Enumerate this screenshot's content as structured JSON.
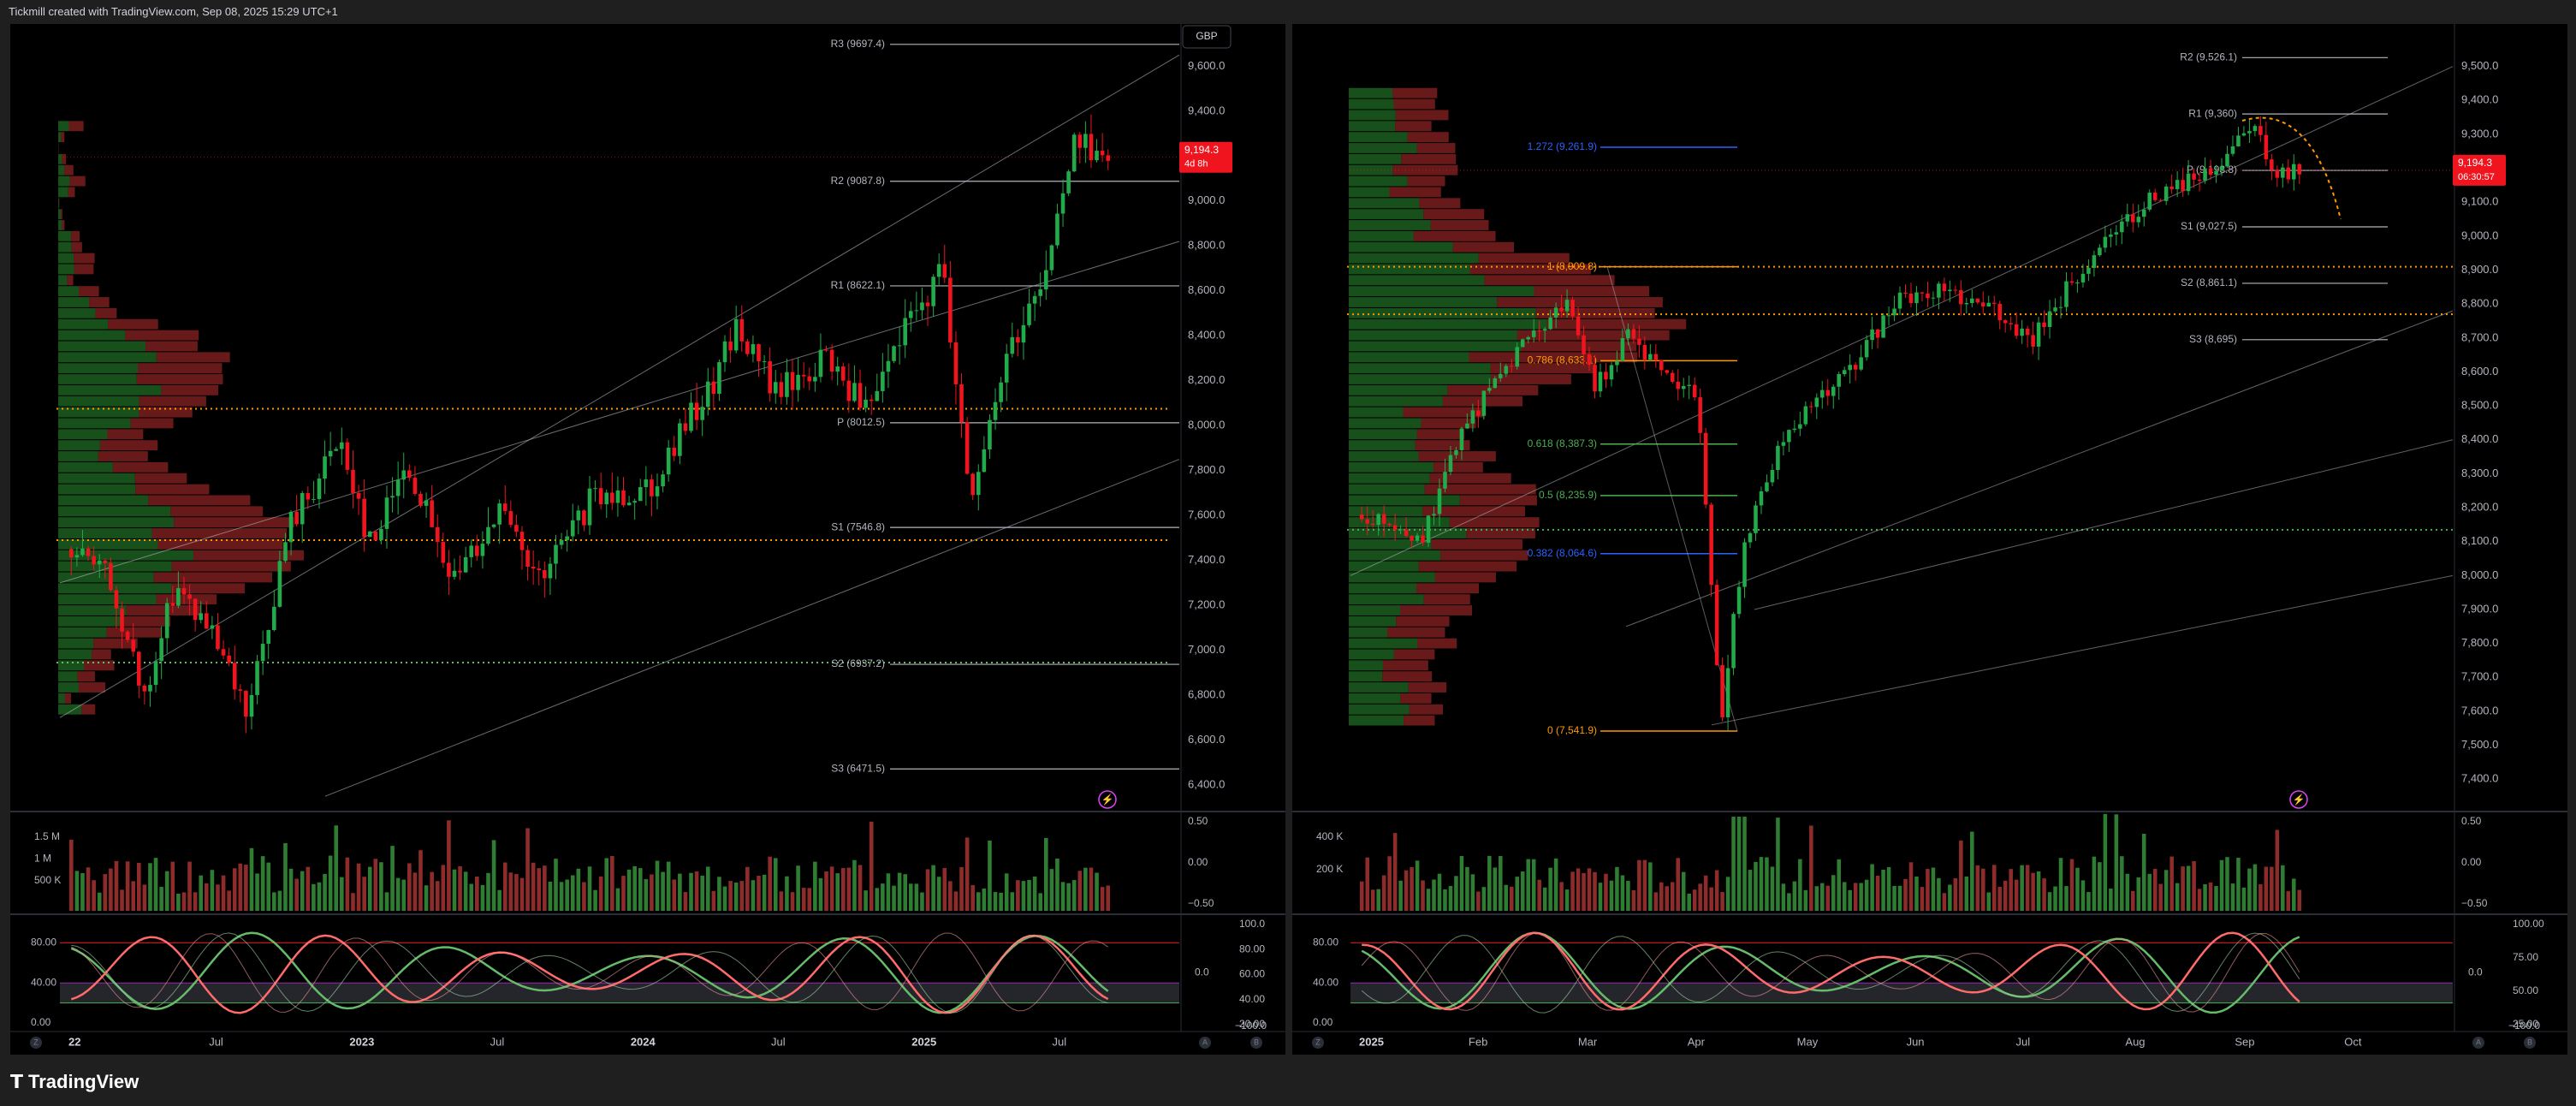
{
  "header": {
    "title": "Tickmill created with TradingView.com, Sep 08, 2025 15:29 UTC+1"
  },
  "footer": {
    "brand": "TradingView"
  },
  "colors": {
    "background": "#000000",
    "frame": "#1f1f1f",
    "up": "#22ab4a",
    "down": "#f0141e",
    "pivot_line": "#b2b5be",
    "fib_orange": "#ff9800",
    "fib_blue": "#2962ff",
    "fib_green": "#4caf50",
    "price_badge": "#f0141e",
    "stoch_fast": "#66bb6a",
    "stoch_slow": "#ff6b6b"
  },
  "icons": {
    "bolt": "lightning-bolt-icon",
    "brand": "tradingview-logo-icon"
  },
  "chart_data": [
    {
      "type": "candlestick",
      "panel": "left",
      "currency_label": "GBP",
      "price_axis": {
        "ylim": [
          6320,
          9750
        ],
        "ticks": [
          "9,600.0",
          "9,400.0",
          "9,200.0",
          "9,000.0",
          "8,800.0",
          "8,600.0",
          "8,400.0",
          "8,200.0",
          "8,000.0",
          "7,800.0",
          "7,600.0",
          "7,400.0",
          "7,200.0",
          "7,000.0",
          "6,800.0",
          "6,600.0",
          "6,400.0"
        ]
      },
      "time_axis": {
        "labels": [
          "22",
          "Jul",
          "2023",
          "Jul",
          "2024",
          "Jul",
          "2025",
          "Jul"
        ]
      },
      "last_price": {
        "value": "9,194.3",
        "countdown": "4d 8h"
      },
      "pivots": [
        {
          "label": "R3 (9697.4)",
          "value": 9697.4
        },
        {
          "label": "R2 (9087.8)",
          "value": 9087.8
        },
        {
          "label": "R1 (8622.1)",
          "value": 8622.1
        },
        {
          "label": "P (8012.5)",
          "value": 8012.5
        },
        {
          "label": "S1 (7546.8)",
          "value": 7546.8
        },
        {
          "label": "S2 (6937.2)",
          "value": 6937.2
        },
        {
          "label": "S3 (6471.5)",
          "value": 6471.5
        }
      ],
      "dotted_levels": [
        8075,
        7490,
        6945
      ],
      "volume_axis": {
        "left_ticks": [
          "1.5 M",
          "1 M",
          "500 K"
        ],
        "right_ticks": [
          "0.50",
          "0.00",
          "−0.50"
        ]
      },
      "oscillator_axis": {
        "left_ticks": [
          "80.00",
          "40.00",
          "0.00"
        ],
        "right_ticks": [
          "100.0",
          "80.00",
          "60.00",
          "40.00",
          "20.00"
        ],
        "mid_tick": "0.0",
        "low_tick": "−100.0"
      },
      "axis_buttons": [
        "Z",
        "A",
        "B"
      ]
    },
    {
      "type": "candlestick",
      "panel": "right",
      "price_axis": {
        "ylim": [
          7330,
          9600
        ],
        "ticks": [
          "9,500.0",
          "9,400.0",
          "9,300.0",
          "9,200.0",
          "9,100.0",
          "9,000.0",
          "8,900.0",
          "8,800.0",
          "8,700.0",
          "8,600.0",
          "8,500.0",
          "8,400.0",
          "8,300.0",
          "8,200.0",
          "8,100.0",
          "8,000.0",
          "7,900.0",
          "7,800.0",
          "7,700.0",
          "7,600.0",
          "7,500.0",
          "7,400.0"
        ]
      },
      "time_axis": {
        "labels": [
          "2025",
          "Feb",
          "Mar",
          "Apr",
          "May",
          "Jun",
          "Jul",
          "Aug",
          "Sep",
          "Oct"
        ]
      },
      "last_price": {
        "value": "9,194.3",
        "countdown": "06:30:57"
      },
      "pivots": [
        {
          "label": "R2 (9,526.1)",
          "value": 9526.1
        },
        {
          "label": "R1 (9,360)",
          "value": 9360
        },
        {
          "label": "P (9,193.8)",
          "value": 9193.8
        },
        {
          "label": "S1 (9,027.5)",
          "value": 9027.5
        },
        {
          "label": "S2 (8,861.1)",
          "value": 8861.1
        },
        {
          "label": "S3 (8,695)",
          "value": 8695
        }
      ],
      "fib_levels": [
        {
          "label": "1.272 (9,261.9)",
          "value": 9261.9,
          "color": "#2962ff"
        },
        {
          "label": "1 (8,909.8)",
          "value": 8909.8,
          "color": "#ff9800"
        },
        {
          "label": "0.786 (8,633.1)",
          "value": 8633.1,
          "color": "#ff9800"
        },
        {
          "label": "0.618 (8,387.3)",
          "value": 8387.3,
          "color": "#4caf50"
        },
        {
          "label": "0.5 (8,235.9)",
          "value": 8235.9,
          "color": "#4caf50"
        },
        {
          "label": "0.382 (8,064.6)",
          "value": 8064.6,
          "color": "#2962ff"
        },
        {
          "label": "0 (7,541.9)",
          "value": 7541.9,
          "color": "#ff9800"
        }
      ],
      "dotted_levels": [
        8910,
        8770,
        8135
      ],
      "volume_axis": {
        "left_ticks": [
          "400 K",
          "200 K"
        ],
        "right_ticks": [
          "0.50",
          "0.00",
          "−0.50"
        ]
      },
      "oscillator_axis": {
        "left_ticks": [
          "80.00",
          "40.00",
          "0.00"
        ],
        "right_ticks": [
          "100.00",
          "75.00",
          "50.00",
          "25.00"
        ],
        "mid_tick": "0.0",
        "low_tick": "−100.0"
      },
      "axis_buttons": [
        "Z",
        "A",
        "B"
      ]
    }
  ]
}
